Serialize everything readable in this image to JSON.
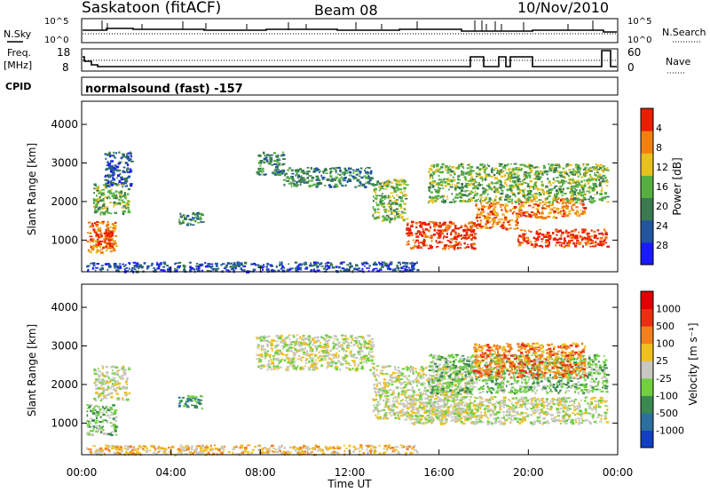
{
  "header": {
    "station": "Saskatoon (fitACF)",
    "beam": "Beam 08",
    "date": "10/Nov/2010"
  },
  "nsky_panel": {
    "left_label": "N.Sky",
    "right_label": "N.Search",
    "left_ticks": [
      "10^5",
      "10^0"
    ],
    "right_ticks": [
      "10^5",
      "10^0"
    ]
  },
  "freq_panel": {
    "left_label_1": "Freq.",
    "left_label_2": "[MHz]",
    "right_label": "Nave",
    "left_ticks": [
      "18",
      "8"
    ],
    "right_ticks": [
      "60",
      "0"
    ]
  },
  "cpid_panel": {
    "label": "CPID",
    "text": "normalsound (fast) -157"
  },
  "chart_data": [
    {
      "type": "heatmap",
      "name": "power",
      "ylabel": "Slant Range [km]",
      "y_ticks": [
        "1000",
        "2000",
        "3000",
        "4000"
      ],
      "ylim": [
        180,
        4600
      ],
      "xlim": [
        0,
        24
      ],
      "colorbar_label": "Power [dB]",
      "colorbar_ticks": [
        "4",
        "8",
        "12",
        "16",
        "20",
        "24",
        "28"
      ],
      "colors": [
        "#1a1aff",
        "#2255a0",
        "#3a7a50",
        "#55b040",
        "#e8c020",
        "#f08010",
        "#e82000"
      ],
      "bands": [
        {
          "x0": 0.2,
          "x1": 1.5,
          "y0": 700,
          "y1": 1500,
          "level": 5
        },
        {
          "x0": 0.6,
          "x1": 1.4,
          "y0": 800,
          "y1": 1300,
          "level": 6
        },
        {
          "x0": 0.5,
          "x1": 2.1,
          "y0": 1700,
          "y1": 2500,
          "level": 3
        },
        {
          "x0": 1.0,
          "x1": 2.2,
          "y0": 2400,
          "y1": 3300,
          "level": 1
        },
        {
          "x0": 7.8,
          "x1": 9.0,
          "y0": 2700,
          "y1": 3300,
          "level": 2
        },
        {
          "x0": 9.0,
          "x1": 13.0,
          "y0": 2400,
          "y1": 2900,
          "level": 2
        },
        {
          "x0": 13.0,
          "x1": 14.5,
          "y0": 1500,
          "y1": 2600,
          "level": 3
        },
        {
          "x0": 14.5,
          "x1": 17.6,
          "y0": 800,
          "y1": 1500,
          "level": 6
        },
        {
          "x0": 17.6,
          "x1": 19.5,
          "y0": 1300,
          "y1": 2000,
          "level": 5
        },
        {
          "x0": 19.5,
          "x1": 23.5,
          "y0": 850,
          "y1": 1300,
          "level": 6
        },
        {
          "x0": 19.5,
          "x1": 22.5,
          "y0": 1600,
          "y1": 2100,
          "level": 5
        },
        {
          "x0": 15.5,
          "x1": 23.5,
          "y0": 2000,
          "y1": 3000,
          "level": 3
        },
        {
          "x0": 0.2,
          "x1": 15.0,
          "y0": 200,
          "y1": 450,
          "level": 1
        },
        {
          "x0": 4.3,
          "x1": 5.4,
          "y0": 1400,
          "y1": 1750,
          "level": 2
        }
      ]
    },
    {
      "type": "heatmap",
      "name": "velocity",
      "ylabel": "Slant Range [km]",
      "y_ticks": [
        "1000",
        "2000",
        "3000",
        "4000"
      ],
      "ylim": [
        180,
        4600
      ],
      "xlim": [
        0,
        24
      ],
      "colorbar_label": "Velocity [m s⁻¹]",
      "colorbar_ticks": [
        "1000",
        "500",
        "100",
        "25",
        "-25",
        "-100",
        "-500",
        "-1000"
      ],
      "colors": [
        "#1040c0",
        "#2a70a0",
        "#3a8a50",
        "#70d040",
        "#c8c8c0",
        "#f0c020",
        "#f08020",
        "#e83010",
        "#e00000"
      ],
      "bands": [
        {
          "x0": 0.2,
          "x1": 1.5,
          "y0": 700,
          "y1": 1500,
          "level": 3
        },
        {
          "x0": 0.5,
          "x1": 2.1,
          "y0": 1600,
          "y1": 2500,
          "level": 4
        },
        {
          "x0": 7.8,
          "x1": 13.0,
          "y0": 2400,
          "y1": 3300,
          "level": 4
        },
        {
          "x0": 13.0,
          "x1": 17.5,
          "y0": 1100,
          "y1": 2500,
          "level": 4
        },
        {
          "x0": 14.5,
          "x1": 23.5,
          "y0": 1000,
          "y1": 1700,
          "level": 4
        },
        {
          "x0": 15.5,
          "x1": 23.5,
          "y0": 1800,
          "y1": 2800,
          "level": 3
        },
        {
          "x0": 17.5,
          "x1": 22.5,
          "y0": 2200,
          "y1": 3100,
          "level": 6
        },
        {
          "x0": 0.2,
          "x1": 15.0,
          "y0": 200,
          "y1": 450,
          "level": 5
        },
        {
          "x0": 4.3,
          "x1": 5.4,
          "y0": 1400,
          "y1": 1750,
          "level": 2
        }
      ]
    }
  ],
  "x_axis": {
    "ticks": [
      "00:00",
      "04:00",
      "08:00",
      "12:00",
      "16:00",
      "20:00",
      "00:00"
    ],
    "label": "Time UT"
  }
}
